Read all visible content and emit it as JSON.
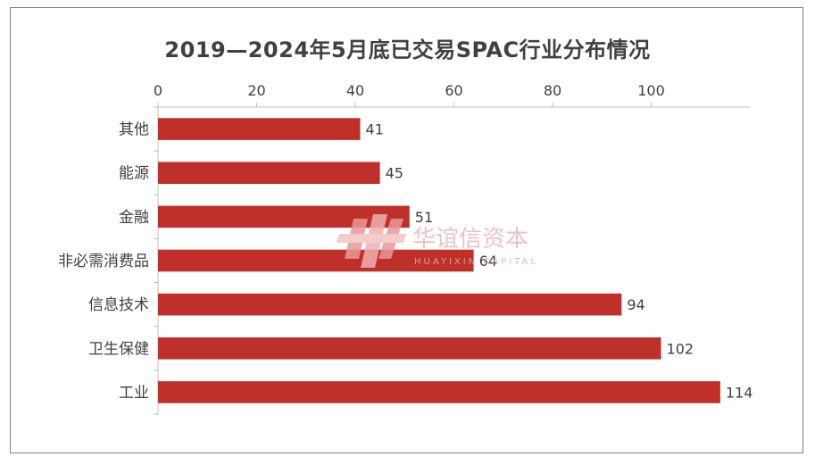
{
  "chart_data": {
    "type": "bar",
    "orientation": "horizontal",
    "title": "2019—2024年5月底已交易SPAC行业分布情况",
    "categories": [
      "其他",
      "能源",
      "金融",
      "非必需消费品",
      "信息技术",
      "卫生保健",
      "工业"
    ],
    "values": [
      41,
      45,
      51,
      64,
      94,
      102,
      114
    ],
    "xlim": [
      0,
      120
    ],
    "xticks": [
      0,
      20,
      40,
      60,
      80,
      100
    ],
    "axis_position": "top",
    "grid": false,
    "legend": "none",
    "bar_color": "#c0302a"
  },
  "watermark": {
    "name_cn": "华谊信资本",
    "name_en": "HUAYIXIN CAPITAL"
  }
}
